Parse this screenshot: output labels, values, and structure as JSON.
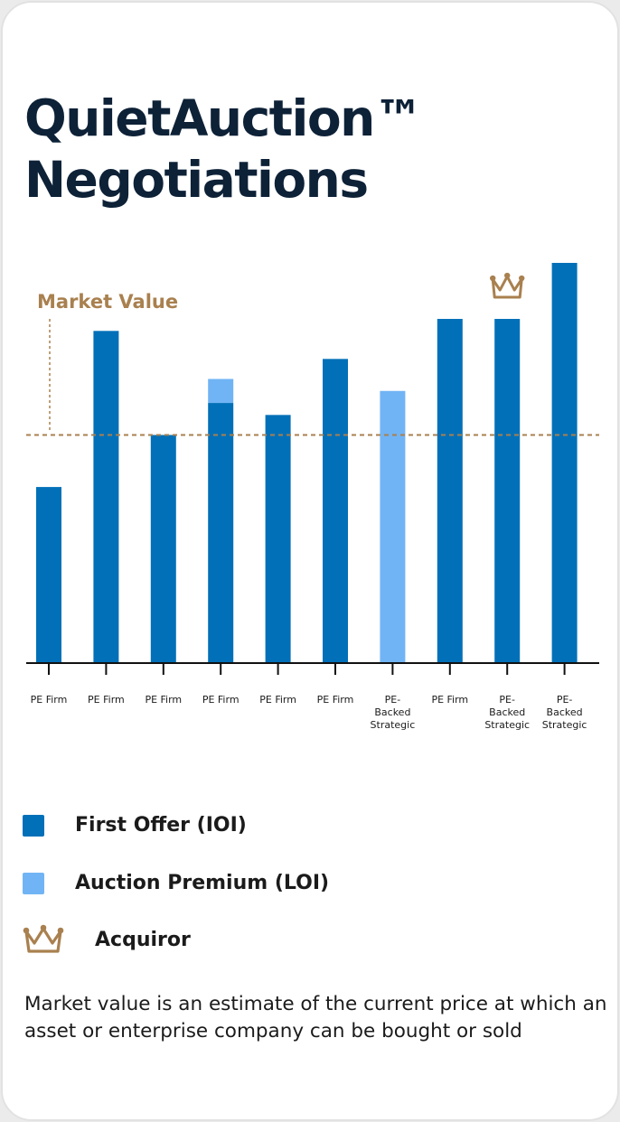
{
  "title_line1": "QuietAuction™",
  "title_line2": "Negotiations",
  "note": "Market value is an estimate of the current price at which an asset or enterprise company can be bought or sold",
  "colors": {
    "first_offer": "#0270b8",
    "auction_premium": "#71b4f5",
    "market_value": "#a9804f",
    "axis": "#111111",
    "title": "#0d2137"
  },
  "legend": [
    {
      "label": "First Offer (IOI)",
      "color": "#0270b8",
      "icon": "square-swatch"
    },
    {
      "label": "Auction Premium (LOI)",
      "color": "#71b4f5",
      "icon": "square-swatch"
    },
    {
      "label": "Acquiror",
      "color": "#a9804f",
      "icon": "crown-icon"
    }
  ],
  "chart_data": {
    "type": "bar",
    "stacked": true,
    "categories": [
      [
        "PE Firm"
      ],
      [
        "PE Firm"
      ],
      [
        "PE Firm"
      ],
      [
        "PE Firm"
      ],
      [
        "PE Firm"
      ],
      [
        "PE Firm"
      ],
      [
        "PE-",
        "Backed",
        "Strategic"
      ],
      [
        "PE Firm"
      ],
      [
        "PE-",
        "Backed",
        "Strategic"
      ],
      [
        "PE-",
        "Backed",
        "Strategic"
      ]
    ],
    "series": [
      {
        "name": "First Offer (IOI)",
        "color": "#0270b8",
        "values": [
          44,
          83,
          57,
          65,
          62,
          76,
          0,
          86,
          86,
          100
        ]
      },
      {
        "name": "Auction Premium (LOI)",
        "color": "#71b4f5",
        "values": [
          0,
          0,
          0,
          6,
          0,
          0,
          68,
          0,
          0,
          0
        ]
      }
    ],
    "market_value": {
      "label": "Market Value",
      "value": 57
    },
    "acquiror_index": 8,
    "ylim": [
      0,
      100
    ],
    "axis_values_shown": false,
    "grid": false,
    "legend_position": "bottom-left"
  }
}
